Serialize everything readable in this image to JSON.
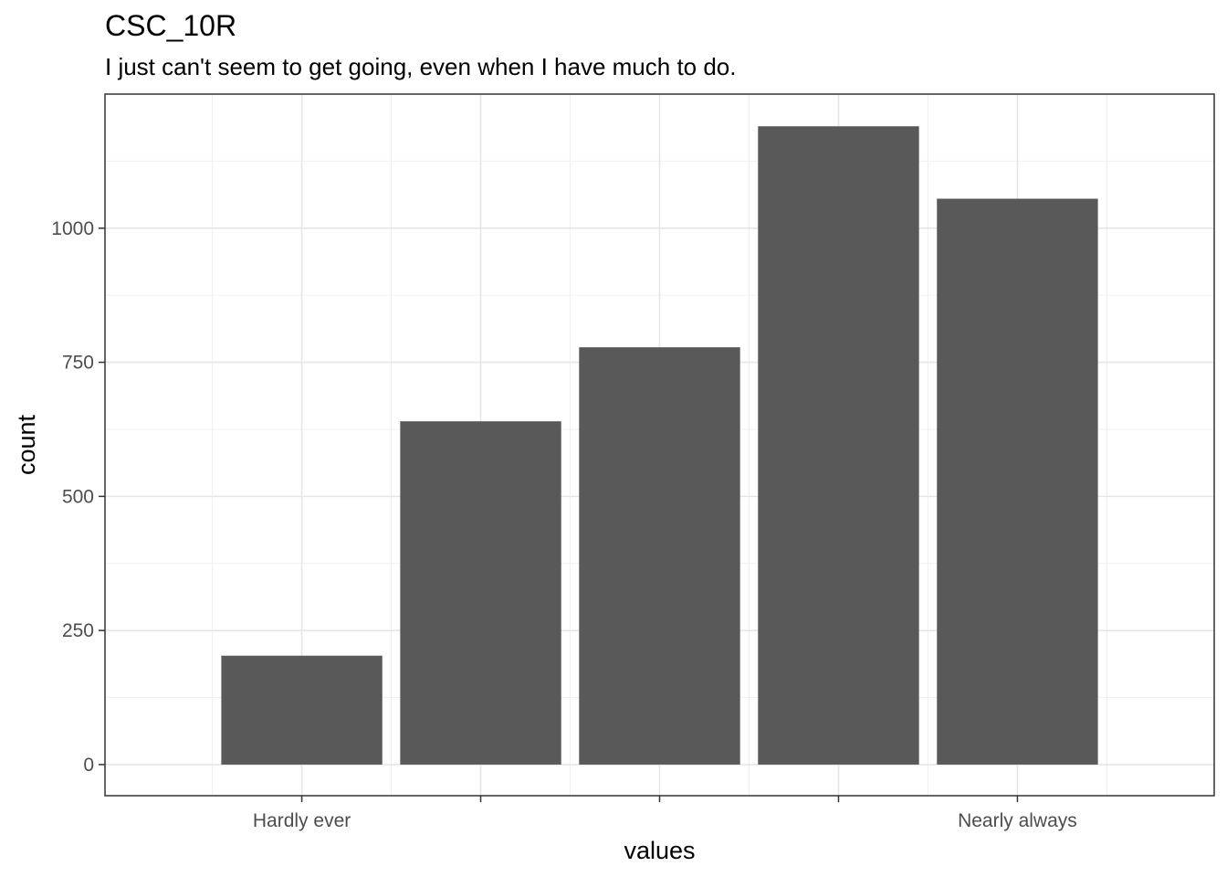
{
  "chart_data": {
    "type": "bar",
    "title": "CSC_10R",
    "subtitle": "I just can't seem to get going, even when I have much to do.",
    "xlabel": "values",
    "ylabel": "count",
    "categories": [
      "1",
      "2",
      "3",
      "4",
      "5"
    ],
    "x_tick_labels": [
      "Hardly ever",
      "",
      "",
      "",
      "Nearly always"
    ],
    "values": [
      203,
      640,
      778,
      1190,
      1055
    ],
    "ylim": [
      -58,
      1250
    ],
    "y_ticks": [
      0,
      250,
      500,
      750,
      1000
    ],
    "grid": true,
    "bar_color": "#595959"
  }
}
